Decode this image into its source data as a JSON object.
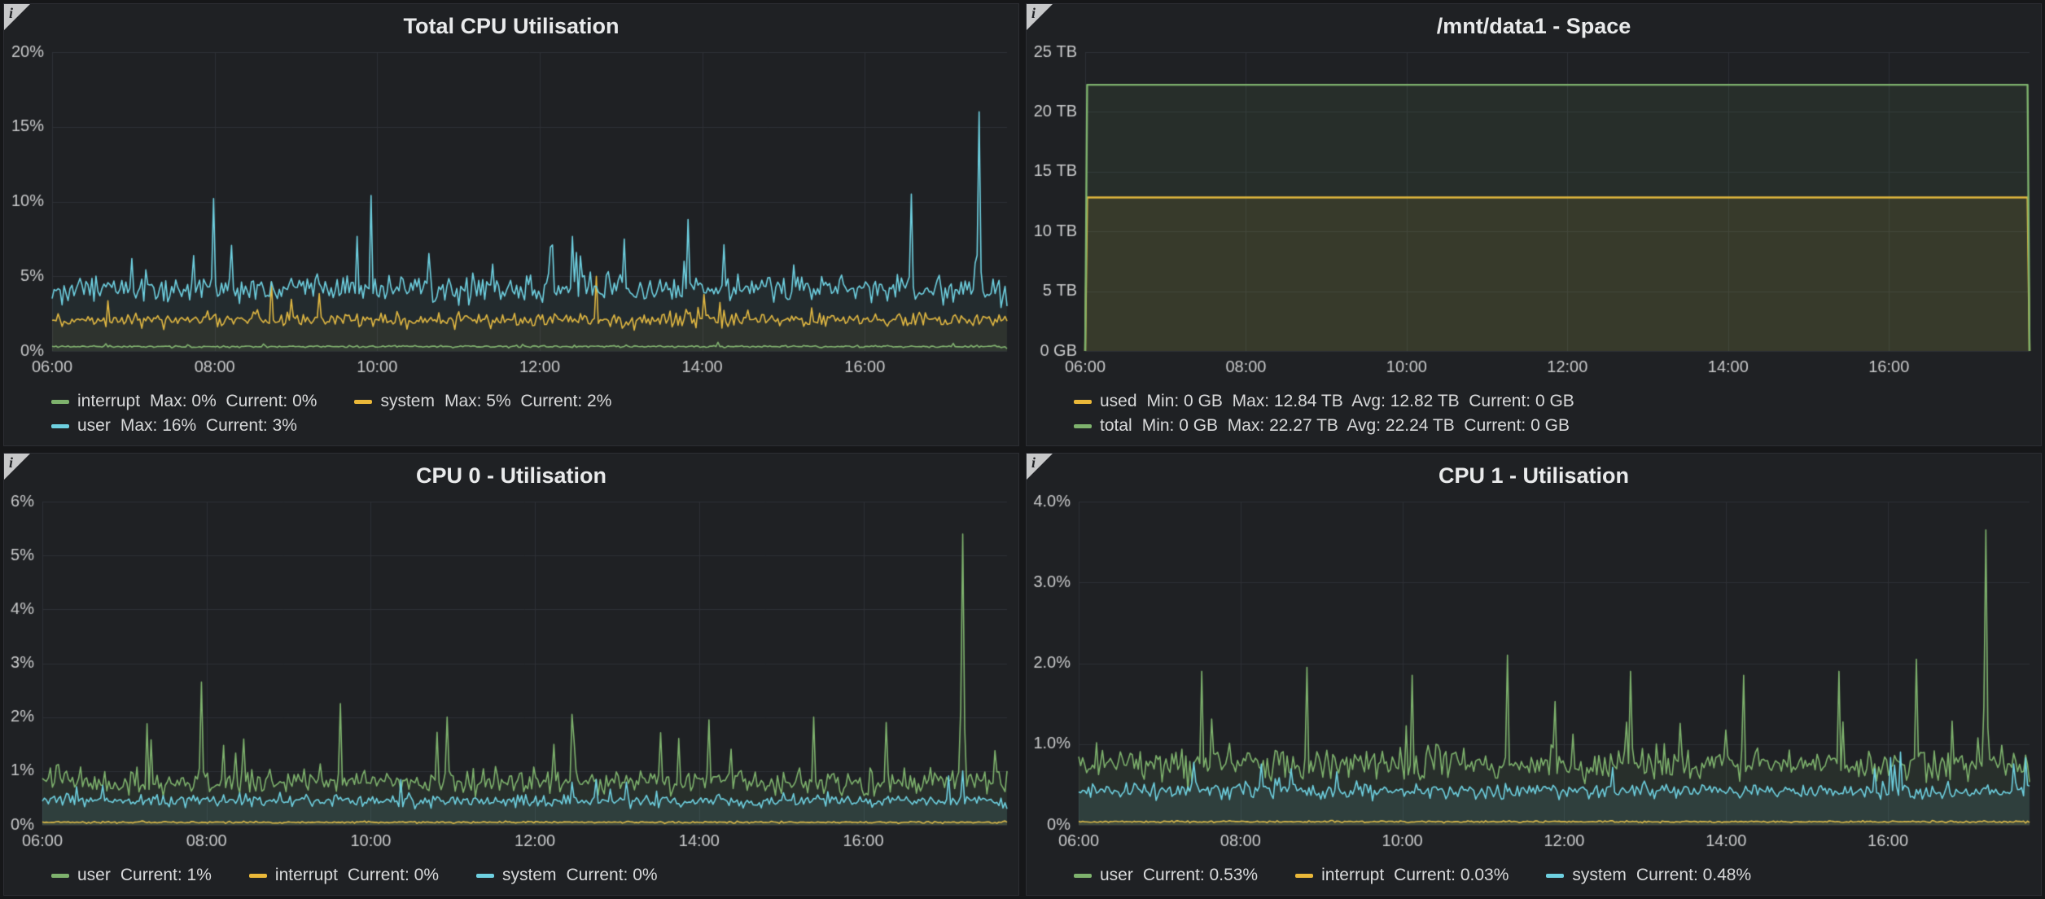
{
  "app": {
    "title": "Grafana monitoring dashboard"
  },
  "icons": {
    "info": "i"
  },
  "theme": {
    "page_bg": "#161719",
    "panel_bg": "#1f2124",
    "panel_border": "#2c2e33",
    "grid_color": "#2e3136",
    "axis_text": "#c9cacb",
    "title_color": "#e9eaeb",
    "legend_text": "#d8d9da"
  },
  "palette": {
    "green": "#7eb26d",
    "yellow": "#eab839",
    "blue": "#6ed0e0"
  },
  "panels": [
    {
      "title": "Total CPU Utilisation",
      "legend_rows": [
        [
          {
            "color": "green",
            "name": "interrupt",
            "stats": "Max: 0%  Current: 0%"
          },
          {
            "color": "yellow",
            "name": "system",
            "stats": "Max: 5%  Current: 2%"
          }
        ],
        [
          {
            "color": "blue",
            "name": "user",
            "stats": "Max: 16%  Current: 3%"
          }
        ]
      ]
    },
    {
      "title": "/mnt/data1 - Space",
      "legend_rows": [
        [
          {
            "color": "yellow",
            "name": "used",
            "stats": "Min: 0 GB  Max: 12.84 TB  Avg: 12.82 TB  Current: 0 GB"
          }
        ],
        [
          {
            "color": "green",
            "name": "total",
            "stats": "Min: 0 GB  Max: 22.27 TB  Avg: 22.24 TB  Current: 0 GB"
          }
        ]
      ]
    },
    {
      "title": "CPU 0 - Utilisation",
      "legend_rows": [
        [
          {
            "color": "green",
            "name": "user",
            "stats": "Current: 1%"
          },
          {
            "color": "yellow",
            "name": "interrupt",
            "stats": "Current: 0%"
          },
          {
            "color": "blue",
            "name": "system",
            "stats": "Current: 0%"
          }
        ]
      ]
    },
    {
      "title": "CPU 1 - Utilisation",
      "legend_rows": [
        [
          {
            "color": "green",
            "name": "user",
            "stats": "Current: 0.53%"
          },
          {
            "color": "yellow",
            "name": "interrupt",
            "stats": "Current: 0.03%"
          },
          {
            "color": "blue",
            "name": "system",
            "stats": "Current: 0.48%"
          }
        ]
      ]
    }
  ],
  "chart_data": [
    {
      "type": "line",
      "title": "Total CPU Utilisation",
      "x": {
        "start": 6,
        "end": 17.75,
        "ticks": [
          6,
          8,
          10,
          12,
          14,
          16
        ],
        "tick_labels": [
          "06:00",
          "08:00",
          "10:00",
          "12:00",
          "14:00",
          "16:00"
        ],
        "unit": "time"
      },
      "y": {
        "min": 0,
        "max": 20,
        "ticks": [
          0,
          5,
          10,
          15,
          20
        ],
        "tick_labels": [
          "0%",
          "5%",
          "10%",
          "15%",
          "20%"
        ],
        "unit": "percent"
      },
      "fill_opacity": 0.06,
      "line_width": 1.6,
      "points": 480,
      "series": [
        {
          "name": "interrupt",
          "color": "green",
          "max": 0,
          "current": 0,
          "gen": {
            "seed": 11,
            "base": 0.3,
            "noise": 0.12,
            "burst": 0.01,
            "end": 0.15
          }
        },
        {
          "name": "system",
          "color": "yellow",
          "max": 5,
          "current": 2,
          "gen": {
            "seed": 12,
            "base": 2.1,
            "noise": 0.8,
            "burst": 0.04,
            "spikes": [
              [
                0.23,
                4.6
              ],
              [
                0.57,
                5.0
              ]
            ],
            "end": 2
          }
        },
        {
          "name": "user",
          "color": "blue",
          "max": 16,
          "current": 3,
          "gen": {
            "seed": 13,
            "base": 4.2,
            "noise": 1.5,
            "burst": 0.05,
            "spikes": [
              [
                0.17,
                10.2
              ],
              [
                0.335,
                10.4
              ],
              [
                0.665,
                8.8
              ],
              [
                0.9,
                10.5
              ],
              [
                0.97,
                16
              ]
            ],
            "end": 3
          }
        }
      ]
    },
    {
      "type": "line",
      "title": "/mnt/data1 - Space",
      "x": {
        "start": 6,
        "end": 17.75,
        "ticks": [
          6,
          8,
          10,
          12,
          14,
          16
        ],
        "tick_labels": [
          "06:00",
          "08:00",
          "10:00",
          "12:00",
          "14:00",
          "16:00"
        ],
        "unit": "time"
      },
      "y": {
        "min": 0,
        "max": 25,
        "ticks": [
          0,
          5,
          10,
          15,
          20,
          25
        ],
        "tick_labels": [
          "0 GB",
          "5 TB",
          "10 TB",
          "15 TB",
          "20 TB",
          "25 TB"
        ],
        "unit": "bytes"
      },
      "fill_opacity": 0.09,
      "line_width": 2.4,
      "points": 480,
      "series": [
        {
          "name": "used",
          "color": "yellow",
          "min": 0,
          "max": 12.84,
          "avg": 12.82,
          "current": 0,
          "gen": {
            "seed": 21,
            "base": 12.84,
            "noise": 0,
            "burst": 0,
            "edge_drop": true
          }
        },
        {
          "name": "total",
          "color": "green",
          "min": 0,
          "max": 22.27,
          "avg": 22.24,
          "current": 0,
          "gen": {
            "seed": 22,
            "base": 22.27,
            "noise": 0,
            "burst": 0,
            "edge_drop": true
          }
        }
      ]
    },
    {
      "type": "line",
      "title": "CPU 0 - Utilisation",
      "x": {
        "start": 6,
        "end": 17.75,
        "ticks": [
          6,
          8,
          10,
          12,
          14,
          16
        ],
        "tick_labels": [
          "06:00",
          "08:00",
          "10:00",
          "12:00",
          "14:00",
          "16:00"
        ],
        "unit": "time"
      },
      "y": {
        "min": 0,
        "max": 6,
        "ticks": [
          0,
          1,
          2,
          3,
          4,
          5,
          6
        ],
        "tick_labels": [
          "0%",
          "1%",
          "2%",
          "3%",
          "4%",
          "5%",
          "6%"
        ],
        "unit": "percent"
      },
      "fill_opacity": 0.1,
      "line_width": 1.6,
      "points": 480,
      "series": [
        {
          "name": "user",
          "color": "green",
          "current": 1,
          "gen": {
            "seed": 31,
            "base": 0.8,
            "noise": 0.4,
            "burst": 0.05,
            "spikes": [
              [
                0.165,
                2.65
              ],
              [
                0.31,
                2.25
              ],
              [
                0.42,
                2.0
              ],
              [
                0.55,
                2.05
              ],
              [
                0.69,
                1.95
              ],
              [
                0.8,
                2.0
              ],
              [
                0.875,
                1.9
              ],
              [
                0.955,
                5.4
              ]
            ],
            "end": 1.0
          }
        },
        {
          "name": "interrupt",
          "color": "yellow",
          "current": 0,
          "gen": {
            "seed": 32,
            "base": 0.05,
            "noise": 0.03,
            "burst": 0,
            "end": 0.05
          }
        },
        {
          "name": "system",
          "color": "blue",
          "current": 0,
          "gen": {
            "seed": 33,
            "base": 0.45,
            "noise": 0.2,
            "burst": 0.03,
            "spikes": [
              [
                0.955,
                1.0
              ]
            ],
            "end": 0.3
          }
        }
      ]
    },
    {
      "type": "line",
      "title": "CPU 1 - Utilisation",
      "x": {
        "start": 6,
        "end": 17.75,
        "ticks": [
          6,
          8,
          10,
          12,
          14,
          16
        ],
        "tick_labels": [
          "06:00",
          "08:00",
          "10:00",
          "12:00",
          "14:00",
          "16:00"
        ],
        "unit": "time"
      },
      "y": {
        "min": 0,
        "max": 4,
        "ticks": [
          0,
          1,
          2,
          3,
          4
        ],
        "tick_labels": [
          "0%",
          "1.0%",
          "2.0%",
          "3.0%",
          "4.0%"
        ],
        "unit": "percent"
      },
      "fill_opacity": 0.1,
      "line_width": 1.6,
      "points": 480,
      "series": [
        {
          "name": "user",
          "color": "green",
          "current": 0.53,
          "gen": {
            "seed": 41,
            "base": 0.75,
            "noise": 0.35,
            "burst": 0.05,
            "spikes": [
              [
                0.13,
                1.9
              ],
              [
                0.24,
                1.95
              ],
              [
                0.35,
                1.85
              ],
              [
                0.45,
                2.1
              ],
              [
                0.58,
                1.9
              ],
              [
                0.7,
                1.85
              ],
              [
                0.8,
                1.9
              ],
              [
                0.88,
                2.05
              ],
              [
                0.955,
                3.65
              ]
            ],
            "end": 0.53
          }
        },
        {
          "name": "interrupt",
          "color": "yellow",
          "current": 0.03,
          "gen": {
            "seed": 42,
            "base": 0.04,
            "noise": 0.02,
            "burst": 0,
            "end": 0.03
          }
        },
        {
          "name": "system",
          "color": "blue",
          "current": 0.48,
          "gen": {
            "seed": 43,
            "base": 0.42,
            "noise": 0.17,
            "burst": 0.03,
            "end": 0.48
          }
        }
      ]
    }
  ]
}
